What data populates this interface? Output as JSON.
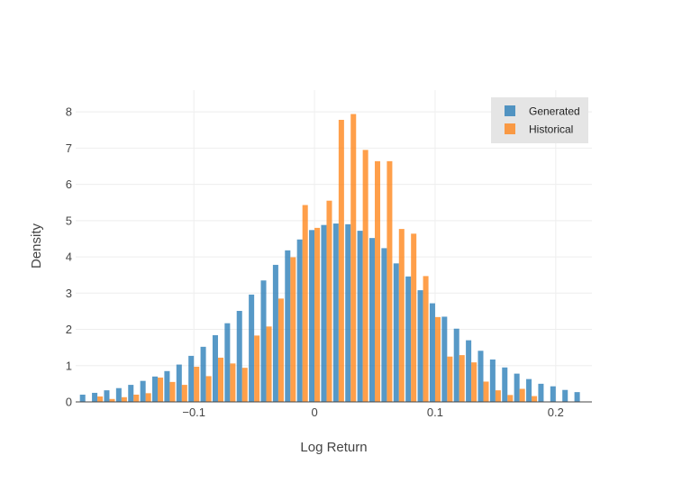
{
  "chart_data": {
    "type": "bar",
    "title": "",
    "xlabel": "Log Return",
    "ylabel": "Density",
    "xlim": [
      -0.198,
      0.23
    ],
    "ylim": [
      0,
      8.6
    ],
    "x_ticks": [
      -0.1,
      0,
      0.1,
      0.2
    ],
    "x_tick_labels": [
      "−0.1",
      "0",
      "0.1",
      "0.2"
    ],
    "y_ticks": [
      0,
      1,
      2,
      3,
      4,
      5,
      6,
      7,
      8
    ],
    "y_tick_labels": [
      "0",
      "1",
      "2",
      "3",
      "4",
      "5",
      "6",
      "7",
      "8"
    ],
    "bin_width": 0.01,
    "grid": true,
    "legend_position": "top-right",
    "x": [
      -0.19,
      -0.18,
      -0.17,
      -0.16,
      -0.15,
      -0.14,
      -0.13,
      -0.12,
      -0.11,
      -0.1,
      -0.09,
      -0.08,
      -0.07,
      -0.06,
      -0.05,
      -0.04,
      -0.03,
      -0.02,
      -0.01,
      0.0,
      0.01,
      0.02,
      0.03,
      0.04,
      0.05,
      0.06,
      0.07,
      0.08,
      0.09,
      0.1,
      0.11,
      0.12,
      0.13,
      0.14,
      0.15,
      0.16,
      0.17,
      0.18,
      0.19,
      0.2,
      0.21,
      0.22
    ],
    "series": [
      {
        "name": "Generated",
        "color": "#1f77b4",
        "values": [
          0.2,
          0.25,
          0.32,
          0.38,
          0.47,
          0.58,
          0.7,
          0.85,
          1.03,
          1.27,
          1.52,
          1.84,
          2.17,
          2.51,
          2.96,
          3.35,
          3.78,
          4.18,
          4.48,
          4.74,
          4.88,
          4.92,
          4.9,
          4.72,
          4.52,
          4.24,
          3.82,
          3.46,
          3.08,
          2.72,
          2.35,
          2.02,
          1.7,
          1.41,
          1.17,
          0.95,
          0.78,
          0.63,
          0.5,
          0.43,
          0.33,
          0.27
        ]
      },
      {
        "name": "Historical",
        "color": "#ff7f0e",
        "values": [
          0.0,
          0.15,
          0.08,
          0.13,
          0.2,
          0.24,
          0.67,
          0.55,
          0.47,
          0.97,
          0.71,
          1.22,
          1.06,
          0.94,
          1.83,
          2.08,
          2.85,
          3.99,
          5.43,
          4.8,
          5.55,
          7.78,
          7.94,
          6.95,
          6.64,
          6.64,
          4.77,
          4.64,
          3.47,
          2.34,
          1.25,
          1.29,
          1.09,
          0.56,
          0.32,
          0.19,
          0.36,
          0.16,
          0.0,
          0.0,
          0.0,
          0.0
        ]
      }
    ]
  }
}
